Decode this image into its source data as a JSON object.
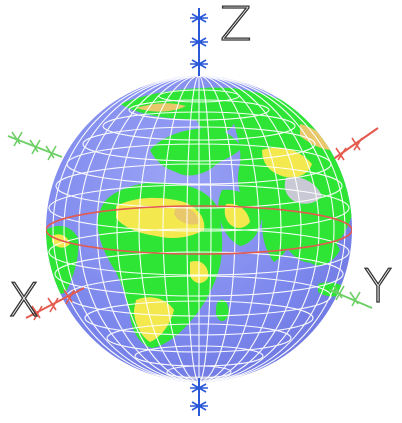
{
  "figure": {
    "axis_labels": {
      "x": "X",
      "y": "Y",
      "z": "Z"
    },
    "colors": {
      "ocean": "#7b86ec",
      "land_green": "#2ee536",
      "land_yellow": "#f3e84d",
      "land_orange": "#e8c86a",
      "ice_grey": "#c9c9d6",
      "graticule": "#ffffff",
      "x_axis": "#e45a4f",
      "y_axis": "#6fcf67",
      "z_axis": "#2a59d8"
    }
  }
}
